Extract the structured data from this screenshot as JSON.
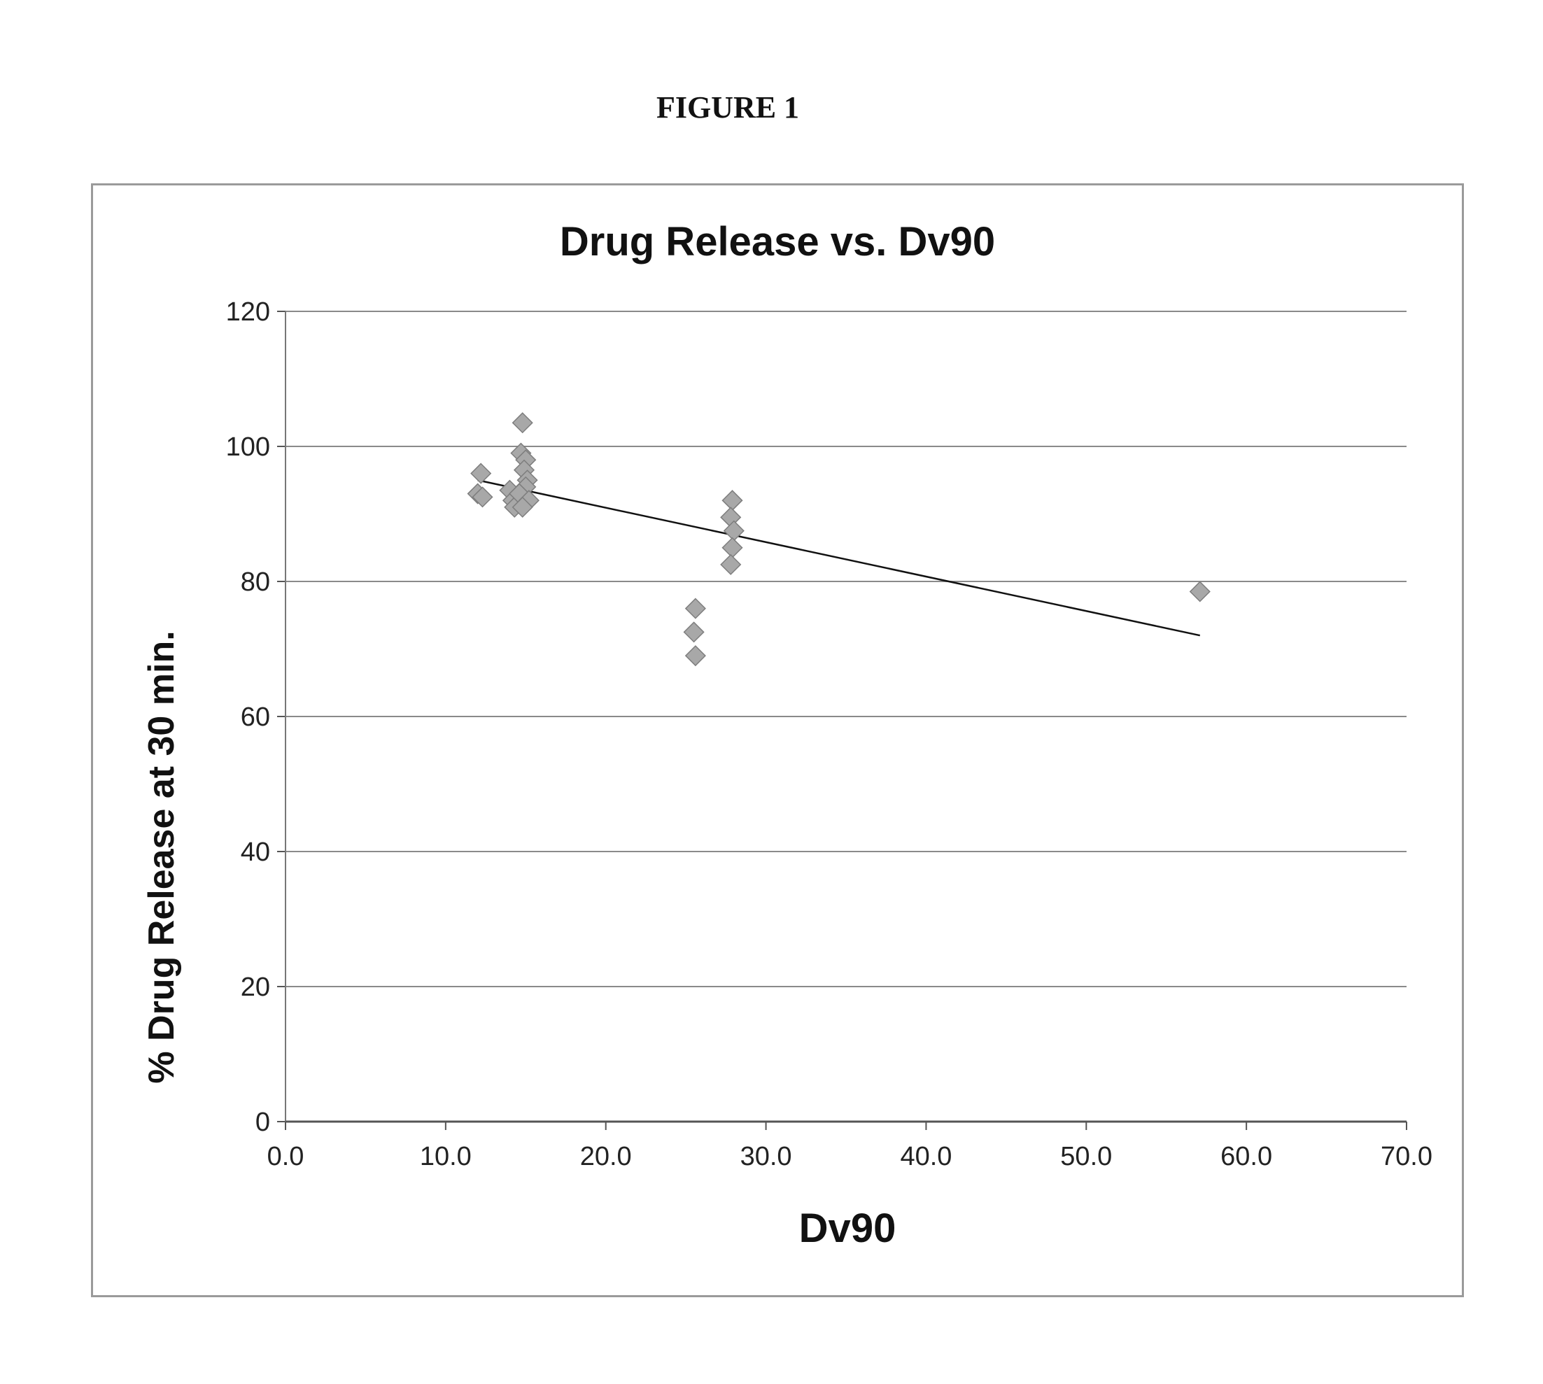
{
  "figure_label": "FIGURE 1",
  "chart_data": {
    "type": "scatter",
    "title": "Drug Release vs. Dv90",
    "xlabel": "Dv90",
    "ylabel": "% Drug Release at 30 min.",
    "xlim": [
      0,
      70
    ],
    "ylim": [
      0,
      120
    ],
    "x_ticks": [
      "0.0",
      "10.0",
      "20.0",
      "30.0",
      "40.0",
      "50.0",
      "60.0",
      "70.0"
    ],
    "y_ticks": [
      "0",
      "20",
      "40",
      "60",
      "80",
      "100",
      "120"
    ],
    "grid": "horizontal",
    "legend": "none",
    "marker": "diamond",
    "marker_color": "#a8a8a8",
    "series": [
      {
        "points": [
          {
            "x": 12.2,
            "y": 96.0
          },
          {
            "x": 12.0,
            "y": 93.0
          },
          {
            "x": 12.3,
            "y": 92.5
          },
          {
            "x": 14.0,
            "y": 93.5
          },
          {
            "x": 14.2,
            "y": 92.0
          },
          {
            "x": 14.3,
            "y": 91.0
          },
          {
            "x": 14.8,
            "y": 103.5
          },
          {
            "x": 14.7,
            "y": 99.0
          },
          {
            "x": 15.0,
            "y": 98.0
          },
          {
            "x": 14.9,
            "y": 96.5
          },
          {
            "x": 15.1,
            "y": 95.0
          },
          {
            "x": 15.0,
            "y": 94.0
          },
          {
            "x": 14.6,
            "y": 93.0
          },
          {
            "x": 15.2,
            "y": 92.0
          },
          {
            "x": 14.8,
            "y": 91.0
          },
          {
            "x": 25.6,
            "y": 76.0
          },
          {
            "x": 25.5,
            "y": 72.5
          },
          {
            "x": 25.6,
            "y": 69.0
          },
          {
            "x": 27.9,
            "y": 92.0
          },
          {
            "x": 27.8,
            "y": 89.5
          },
          {
            "x": 28.0,
            "y": 87.5
          },
          {
            "x": 27.9,
            "y": 85.0
          },
          {
            "x": 27.8,
            "y": 82.5
          },
          {
            "x": 57.1,
            "y": 78.5
          }
        ]
      }
    ],
    "trendline": {
      "type": "linear",
      "points": [
        {
          "x": 12.0,
          "y": 95.0
        },
        {
          "x": 57.1,
          "y": 72.0
        }
      ]
    }
  }
}
